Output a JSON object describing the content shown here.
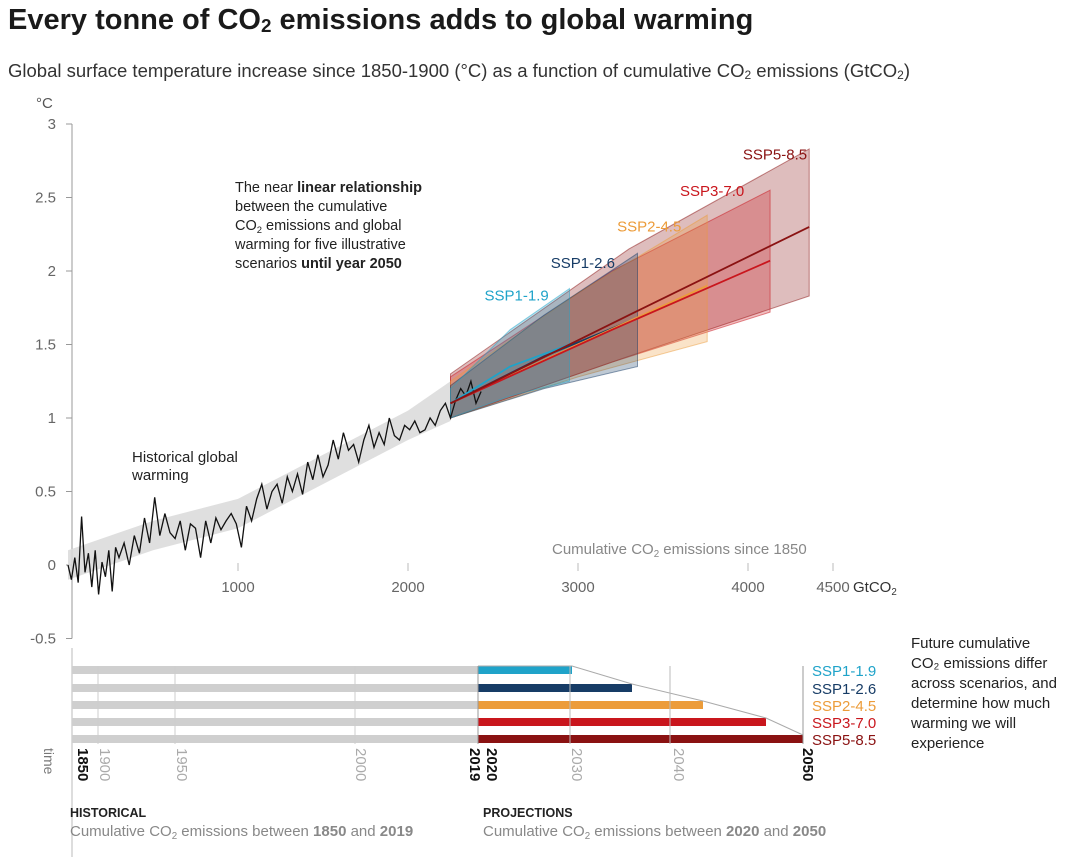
{
  "title": {
    "main": "Every tonne of CO",
    "sub": "2",
    "tail": " emissions adds to global warming"
  },
  "subtitle": {
    "part1": "Global surface temperature increase since 1850-1900 (°C) as a function of cumulative CO",
    "sub1": "2",
    "part2": " emissions (GtCO",
    "sub2": "2",
    "part3": ")"
  },
  "colors": {
    "historical": "#111111",
    "historical_band": "#d9d9d9",
    "SSP1-1.9": "#1fa3c9",
    "SSP1-2.6": "#173c66",
    "SSP2-4.5": "#ec9c3a",
    "SSP3-7.0": "#c9161d",
    "SSP5-8.5": "#8a1212",
    "axis": "#999999",
    "bar_gray": "#cfcfcf"
  },
  "chart_data": {
    "type": "line",
    "y_unit": "°C",
    "x_unit": "GtCO",
    "x_unit_sub": "2",
    "xlim": [
      0,
      4500
    ],
    "ylim": [
      -0.5,
      3
    ],
    "x_ticks": [
      1000,
      2000,
      3000,
      4000,
      4500
    ],
    "y_ticks": [
      3,
      2.5,
      2,
      1.5,
      1,
      0.5,
      0,
      -0.5
    ],
    "x_axis_caption": {
      "pre": "Cumulative CO",
      "sub": "2",
      "post": " emissions since 1850"
    },
    "historical": {
      "label_line1": "Historical global",
      "label_line2": "warming",
      "x": [
        0,
        20,
        40,
        60,
        80,
        100,
        120,
        140,
        160,
        180,
        200,
        220,
        240,
        260,
        280,
        300,
        330,
        360,
        390,
        420,
        450,
        480,
        510,
        540,
        570,
        600,
        630,
        660,
        690,
        720,
        750,
        780,
        810,
        840,
        870,
        900,
        930,
        960,
        990,
        1020,
        1050,
        1080,
        1110,
        1140,
        1170,
        1200,
        1230,
        1260,
        1290,
        1320,
        1350,
        1380,
        1410,
        1440,
        1470,
        1500,
        1530,
        1560,
        1590,
        1620,
        1650,
        1680,
        1710,
        1740,
        1770,
        1800,
        1830,
        1860,
        1890,
        1920,
        1950,
        1980,
        2010,
        2040,
        2070,
        2100,
        2130,
        2160,
        2190,
        2220,
        2250,
        2280,
        2310,
        2340,
        2370,
        2400,
        2430
      ],
      "y": [
        0.0,
        -0.1,
        0.05,
        -0.12,
        0.33,
        -0.05,
        0.08,
        -0.15,
        0.1,
        -0.2,
        0.02,
        -0.08,
        0.1,
        -0.18,
        0.12,
        0.05,
        0.15,
        0.0,
        0.2,
        0.08,
        0.32,
        0.15,
        0.46,
        0.2,
        0.35,
        0.22,
        0.18,
        0.3,
        0.1,
        0.28,
        0.25,
        0.05,
        0.3,
        0.15,
        0.32,
        0.24,
        0.3,
        0.35,
        0.28,
        0.12,
        0.4,
        0.3,
        0.45,
        0.55,
        0.38,
        0.5,
        0.55,
        0.42,
        0.6,
        0.5,
        0.62,
        0.48,
        0.7,
        0.58,
        0.75,
        0.6,
        0.68,
        0.85,
        0.72,
        0.9,
        0.78,
        0.82,
        0.7,
        0.85,
        0.95,
        0.8,
        0.9,
        0.82,
        1.0,
        0.88,
        0.85,
        0.95,
        0.92,
        0.98,
        0.9,
        0.92,
        1.0,
        0.95,
        1.05,
        1.1,
        1.0,
        1.12,
        1.2,
        1.15,
        1.25,
        1.1,
        1.18
      ],
      "band_x": [
        0,
        500,
        1000,
        1500,
        2000,
        2250
      ],
      "band_lo": [
        -0.1,
        0.1,
        0.25,
        0.55,
        0.85,
        0.98
      ],
      "band_hi": [
        0.1,
        0.3,
        0.45,
        0.75,
        1.05,
        1.25
      ]
    },
    "annotation": {
      "line1_pre": "The near ",
      "line1_bold": "linear relationship",
      "line2": "between the cumulative",
      "line3_pre": "CO",
      "line3_sub": "2",
      "line3_post": " emissions and global",
      "line4": "warming for five illustrative",
      "line5_pre": "scenarios ",
      "line5_bold": "until year 2050"
    },
    "series": [
      {
        "name": "SSP1-1.9",
        "x": [
          2250,
          2600,
          2950
        ],
        "y": [
          1.1,
          1.35,
          1.5
        ],
        "lo": [
          1.0,
          1.15,
          1.25
        ],
        "hi": [
          1.2,
          1.6,
          1.88
        ],
        "label_x": 2450,
        "label_y": 1.8
      },
      {
        "name": "SSP1-2.6",
        "x": [
          2250,
          2800,
          3350
        ],
        "y": [
          1.1,
          1.42,
          1.68
        ],
        "lo": [
          1.0,
          1.2,
          1.35
        ],
        "hi": [
          1.22,
          1.7,
          2.12
        ],
        "label_x": 2840,
        "label_y": 2.02
      },
      {
        "name": "SSP2-4.5",
        "x": [
          2250,
          3000,
          3760
        ],
        "y": [
          1.1,
          1.5,
          1.9
        ],
        "lo": [
          1.0,
          1.28,
          1.52
        ],
        "hi": [
          1.25,
          1.85,
          2.38
        ],
        "label_x": 3230,
        "label_y": 2.27
      },
      {
        "name": "SSP3-7.0",
        "x": [
          2250,
          3200,
          4130
        ],
        "y": [
          1.1,
          1.6,
          2.07
        ],
        "lo": [
          1.0,
          1.38,
          1.72
        ],
        "hi": [
          1.28,
          2.0,
          2.55
        ],
        "label_x": 3600,
        "label_y": 2.51
      },
      {
        "name": "SSP5-8.5",
        "x": [
          2250,
          3300,
          4360
        ],
        "y": [
          1.1,
          1.7,
          2.3
        ],
        "lo": [
          1.0,
          1.42,
          1.83
        ],
        "hi": [
          1.3,
          2.15,
          2.83
        ],
        "label_x": 3970,
        "label_y": 2.76
      }
    ],
    "bars": {
      "bottom_ticks": [
        "1850",
        "1900",
        "1950",
        "2000",
        "2019",
        "2020",
        "2030",
        "2040",
        "2050"
      ],
      "time_label": "time",
      "scenario_labels": [
        "SSP1-1.9",
        "SSP1-2.6",
        "SSP2-4.5",
        "SSP3-7.0",
        "SSP5-8.5"
      ],
      "side_note": [
        "Future cumulative",
        "CO₂ emissions differ",
        "across scenarios, and",
        "determine how much",
        "warming we will",
        "experience"
      ],
      "historical_heading": "HISTORICAL",
      "historical_caption_pre": "Cumulative CO",
      "historical_caption_sub": "2",
      "historical_caption_mid": " emissions between ",
      "historical_caption_b1": "1850",
      "historical_caption_and": " and ",
      "historical_caption_b2": "2019",
      "projections_heading": "PROJECTIONS",
      "projections_caption_pre": "Cumulative CO",
      "projections_caption_sub": "2",
      "projections_caption_mid": " emissions between ",
      "projections_caption_b1": "2020",
      "projections_caption_and": " and ",
      "projections_caption_b2": "2050"
    }
  }
}
